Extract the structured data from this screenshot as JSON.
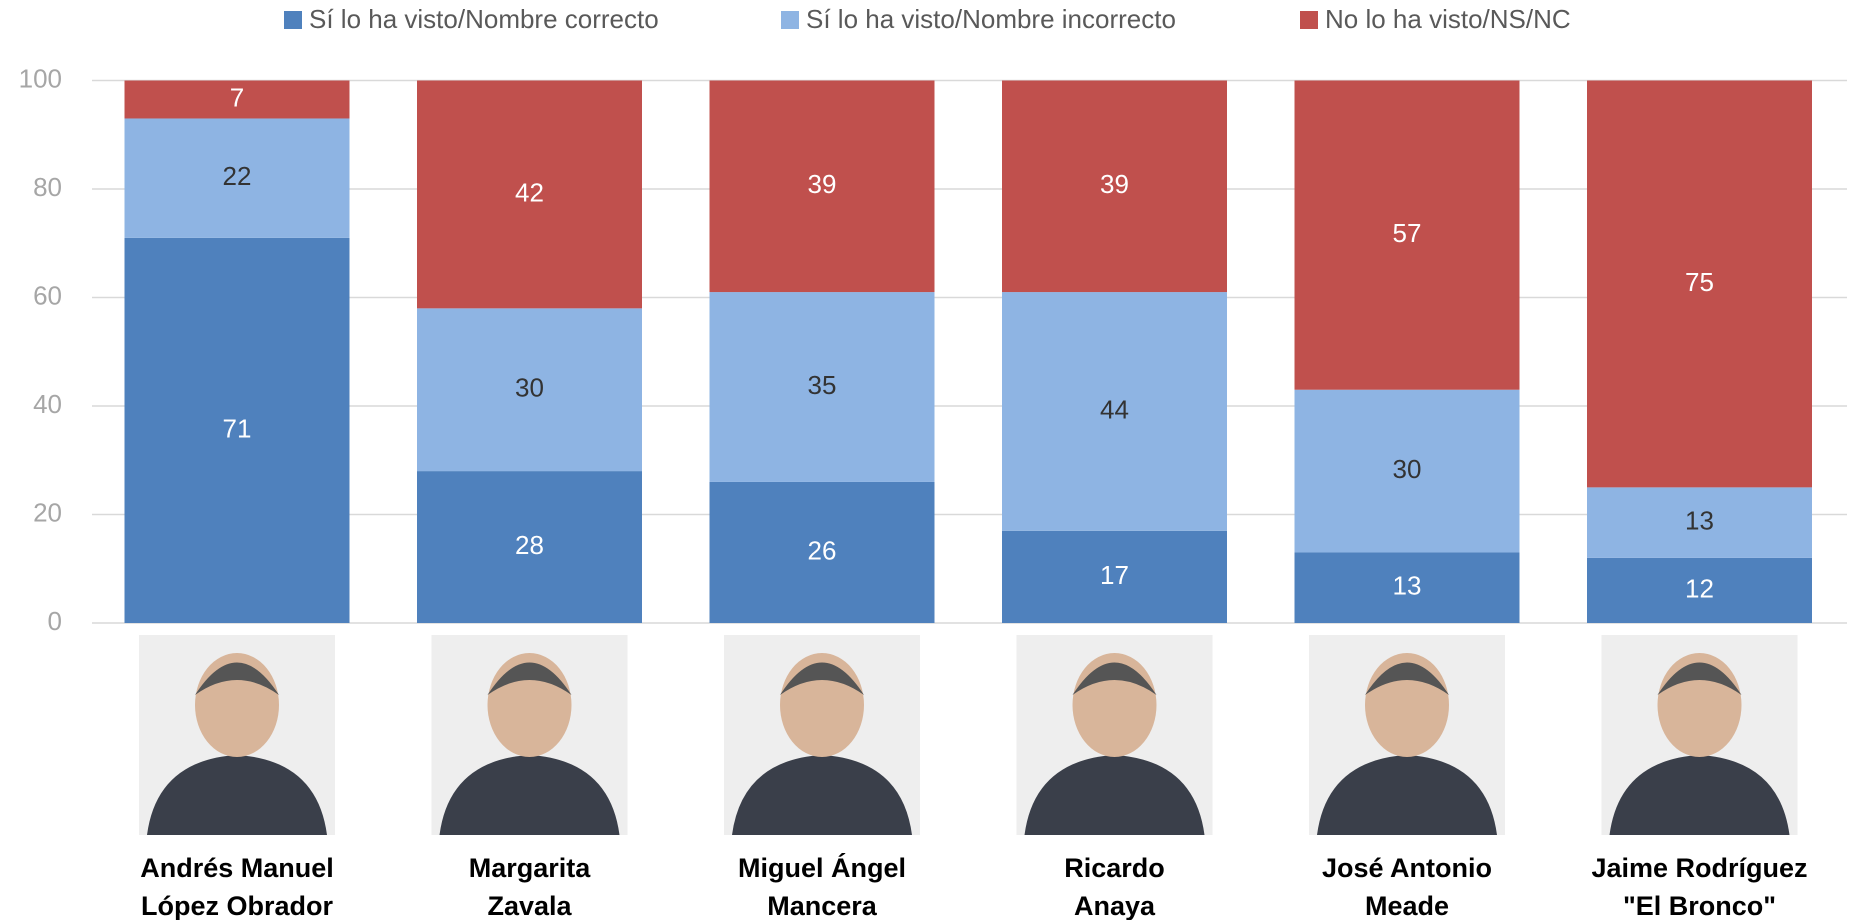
{
  "chart_data": {
    "type": "stacked_bar",
    "categories": [
      [
        "Andrés Manuel",
        "López Obrador"
      ],
      [
        "Margarita",
        "Zavala"
      ],
      [
        "Miguel Ángel",
        "Mancera"
      ],
      [
        "Ricardo",
        "Anaya"
      ],
      [
        "José Antonio",
        "Meade"
      ],
      [
        "Jaime Rodríguez",
        "\"El Bronco\""
      ]
    ],
    "series": [
      {
        "name": "Sí lo ha visto/Nombre correcto",
        "color": "#4f81bd",
        "label_color": "#ffffff",
        "values": [
          71,
          28,
          26,
          17,
          13,
          12
        ]
      },
      {
        "name": "Sí lo ha visto/Nombre incorrecto",
        "color": "#8eb4e3",
        "label_color": "#333333",
        "values": [
          22,
          30,
          35,
          44,
          30,
          13
        ]
      },
      {
        "name": "No lo ha visto/NS/NC",
        "color": "#c0504d",
        "label_color": "#ffffff",
        "values": [
          7,
          42,
          39,
          39,
          57,
          75
        ]
      }
    ],
    "ylim": [
      0,
      100
    ],
    "yticks": [
      0,
      20,
      40,
      60,
      80,
      100
    ],
    "grid": true,
    "legend": "top"
  }
}
